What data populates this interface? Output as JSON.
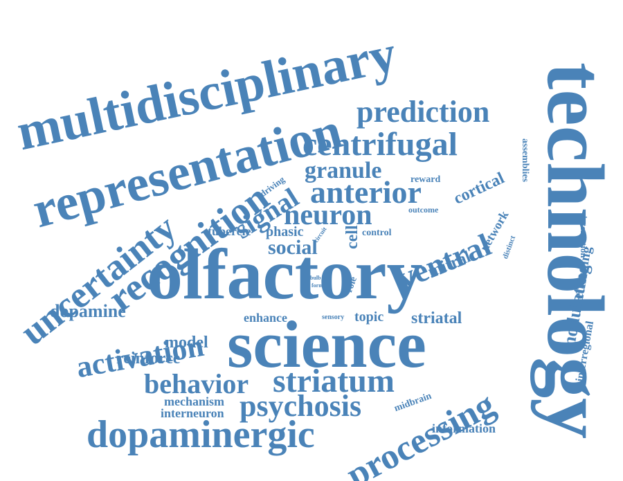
{
  "color": "#4a83b8",
  "words": [
    "multidisciplinary",
    "representation",
    "prediction",
    "centrifugal",
    "technology",
    "uncertainty",
    "recognition",
    "signal",
    "granule",
    "anterior",
    "neuron",
    "reward",
    "cortical",
    "assemblies",
    "driving",
    "outcome",
    "network",
    "tubercle",
    "phasic",
    "circuit",
    "cell",
    "control",
    "distinct",
    "interaction",
    "social",
    "ventral",
    "mitral",
    "encoding",
    "olfactory",
    "bulb",
    "form",
    "role",
    "modulating",
    "dopamine",
    "enhance",
    "sensory",
    "topic",
    "striatal",
    "interregional",
    "activation",
    "science",
    "model",
    "reinforce",
    "behavior",
    "striatum",
    "mechanism",
    "psychosis",
    "midbrain",
    "processing",
    "interneuron",
    "information",
    "dopaminergic"
  ]
}
